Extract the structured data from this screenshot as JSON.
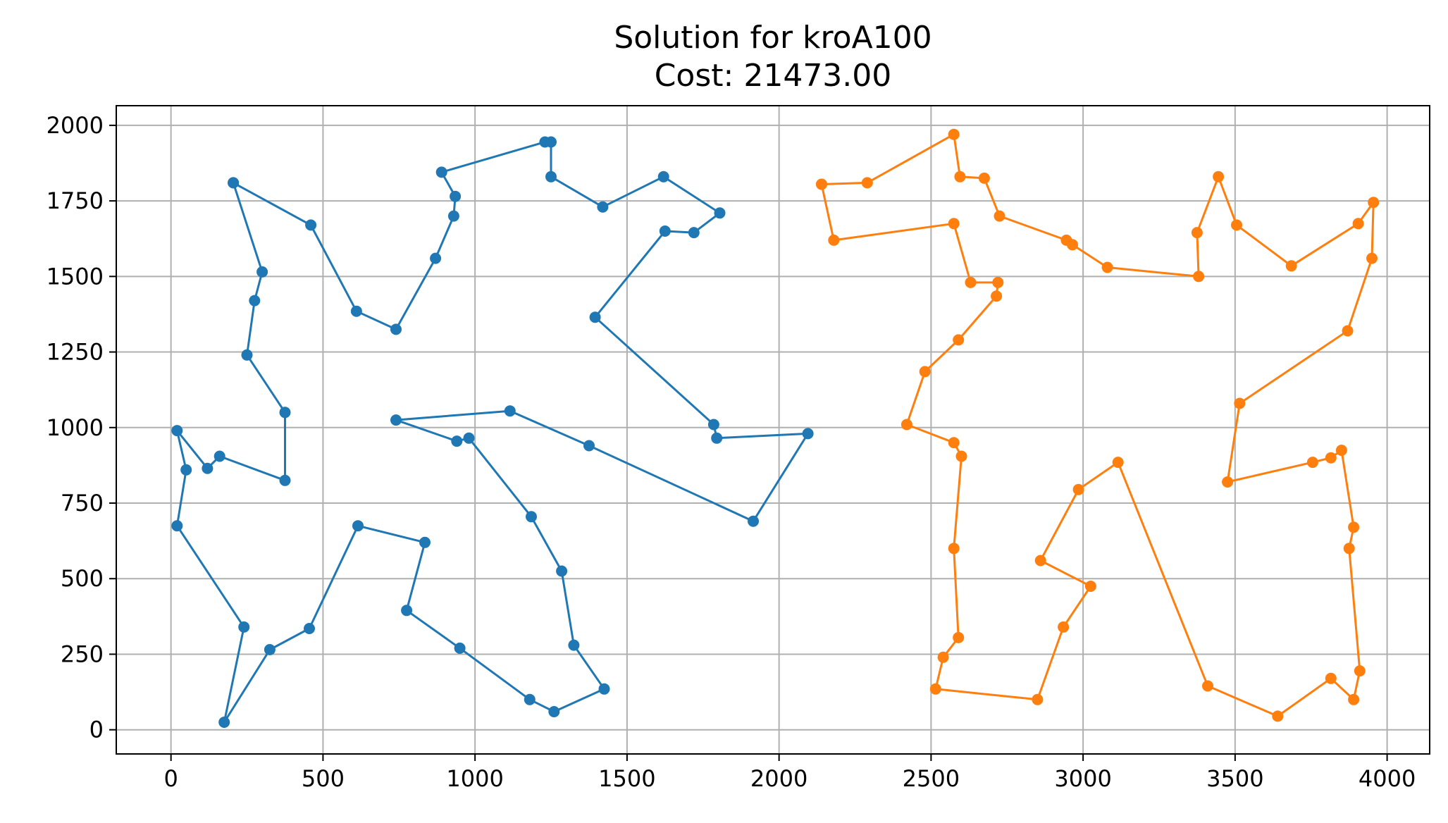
{
  "chart_data": {
    "type": "line",
    "title": "Solution for kroA100",
    "subtitle": "Cost: 21473.00",
    "xlabel": "",
    "ylabel": "",
    "xlim": [
      -180,
      4140
    ],
    "ylim": [
      -80,
      2065
    ],
    "xticks": [
      0,
      500,
      1000,
      1500,
      2000,
      2500,
      3000,
      3500,
      4000
    ],
    "yticks": [
      0,
      250,
      500,
      750,
      1000,
      1250,
      1500,
      1750,
      2000
    ],
    "xtick_labels": [
      "0",
      "500",
      "1000",
      "1500",
      "2000",
      "2500",
      "3000",
      "3500",
      "4000"
    ],
    "ytick_labels": [
      "0",
      "250",
      "500",
      "750",
      "1000",
      "1250",
      "1500",
      "1750",
      "2000"
    ],
    "grid": true,
    "markers": true,
    "series": [
      {
        "color": "#1f77b4",
        "points": [
          [
            205,
            1810
          ],
          [
            460,
            1670
          ],
          [
            610,
            1385
          ],
          [
            740,
            1325
          ],
          [
            870,
            1560
          ],
          [
            930,
            1700
          ],
          [
            935,
            1765
          ],
          [
            890,
            1845
          ],
          [
            1230,
            1945
          ],
          [
            1250,
            1945
          ],
          [
            1250,
            1830
          ],
          [
            1420,
            1730
          ],
          [
            1620,
            1830
          ],
          [
            1805,
            1710
          ],
          [
            1720,
            1645
          ],
          [
            1625,
            1650
          ],
          [
            1395,
            1365
          ],
          [
            1785,
            1010
          ],
          [
            1795,
            965
          ],
          [
            2095,
            980
          ],
          [
            1915,
            690
          ],
          [
            1375,
            940
          ],
          [
            1115,
            1055
          ],
          [
            740,
            1025
          ],
          [
            940,
            955
          ],
          [
            980,
            965
          ],
          [
            1185,
            705
          ],
          [
            1285,
            525
          ],
          [
            1325,
            280
          ],
          [
            1425,
            135
          ],
          [
            1260,
            60
          ],
          [
            1180,
            100
          ],
          [
            950,
            270
          ],
          [
            775,
            395
          ],
          [
            835,
            620
          ],
          [
            615,
            675
          ],
          [
            455,
            335
          ],
          [
            325,
            265
          ],
          [
            175,
            25
          ],
          [
            240,
            340
          ],
          [
            20,
            675
          ],
          [
            50,
            860
          ],
          [
            20,
            990
          ],
          [
            120,
            865
          ],
          [
            160,
            905
          ],
          [
            375,
            825
          ],
          [
            375,
            1050
          ],
          [
            250,
            1240
          ],
          [
            275,
            1420
          ],
          [
            300,
            1515
          ],
          [
            205,
            1810
          ]
        ]
      },
      {
        "color": "#ff7f0e",
        "points": [
          [
            2140,
            1805
          ],
          [
            2290,
            1810
          ],
          [
            2575,
            1970
          ],
          [
            2595,
            1830
          ],
          [
            2675,
            1825
          ],
          [
            2725,
            1700
          ],
          [
            2945,
            1620
          ],
          [
            2965,
            1605
          ],
          [
            3080,
            1530
          ],
          [
            3380,
            1500
          ],
          [
            3375,
            1645
          ],
          [
            3445,
            1830
          ],
          [
            3505,
            1670
          ],
          [
            3685,
            1535
          ],
          [
            3905,
            1675
          ],
          [
            3955,
            1745
          ],
          [
            3950,
            1560
          ],
          [
            3870,
            1320
          ],
          [
            3515,
            1080
          ],
          [
            3475,
            820
          ],
          [
            3755,
            885
          ],
          [
            3815,
            900
          ],
          [
            3850,
            925
          ],
          [
            3890,
            670
          ],
          [
            3875,
            600
          ],
          [
            3910,
            195
          ],
          [
            3890,
            100
          ],
          [
            3815,
            170
          ],
          [
            3640,
            45
          ],
          [
            3410,
            145
          ],
          [
            3115,
            885
          ],
          [
            2985,
            795
          ],
          [
            2860,
            560
          ],
          [
            3025,
            475
          ],
          [
            2935,
            340
          ],
          [
            2850,
            100
          ],
          [
            2515,
            135
          ],
          [
            2540,
            240
          ],
          [
            2590,
            305
          ],
          [
            2575,
            600
          ],
          [
            2600,
            905
          ],
          [
            2575,
            950
          ],
          [
            2420,
            1010
          ],
          [
            2480,
            1185
          ],
          [
            2590,
            1290
          ],
          [
            2715,
            1435
          ],
          [
            2720,
            1480
          ],
          [
            2630,
            1480
          ],
          [
            2575,
            1675
          ],
          [
            2180,
            1620
          ],
          [
            2140,
            1805
          ]
        ]
      }
    ]
  }
}
